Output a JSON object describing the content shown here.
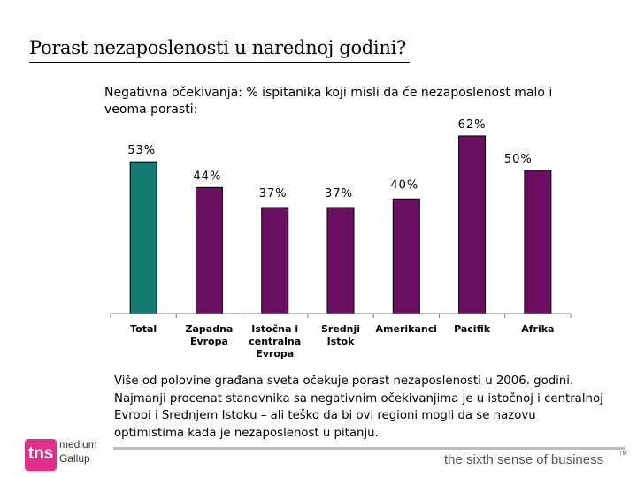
{
  "slide": {
    "title": "Porast nezaposlenosti u narednoj godini?",
    "footnote_lines": [
      "Više od polovine građana sveta očekuje porast nezaposlenosti u 2006. godini.",
      "Najmanji procenat stanovnika sa negativnim očekivanjima je u istočnoj i centralnoj",
      "Evropi i Srednjem Istoku – ali teško da bi ovi regioni mogli da se nazovu",
      "optimistima kada je nezaposlenost u pitanju."
    ]
  },
  "footer": {
    "logo_text": "tns",
    "logo_sub_1": "medium",
    "logo_sub_2": "Gallup",
    "tagline": "the sixth sense of business",
    "tagline_mark": "TM"
  },
  "colors": {
    "total_bar": "#137a72",
    "region_bar": "#6a0f62",
    "logo": "#e2308a",
    "axis": "#808080"
  },
  "chart_data": {
    "type": "bar",
    "title": "Negativna očekivanja: % ispitanika koji misli da će nezaposlenost malo i veoma porasti:",
    "categories": [
      [
        "Total"
      ],
      [
        "Zapadna",
        "Evropa"
      ],
      [
        "Istočna i",
        "centralna",
        "Evropa"
      ],
      [
        "Srednji",
        "Istok"
      ],
      [
        "Amerikanci"
      ],
      [
        "Pacifik"
      ],
      [
        "Afrika"
      ]
    ],
    "values": [
      53,
      44,
      37,
      37,
      40,
      62,
      50
    ],
    "value_labels": [
      "53%",
      "44%",
      "37%",
      "37%",
      "40%",
      "62%",
      "50%"
    ],
    "unit": "%",
    "ylim": [
      0,
      70
    ],
    "grid": false,
    "legend": "none"
  }
}
